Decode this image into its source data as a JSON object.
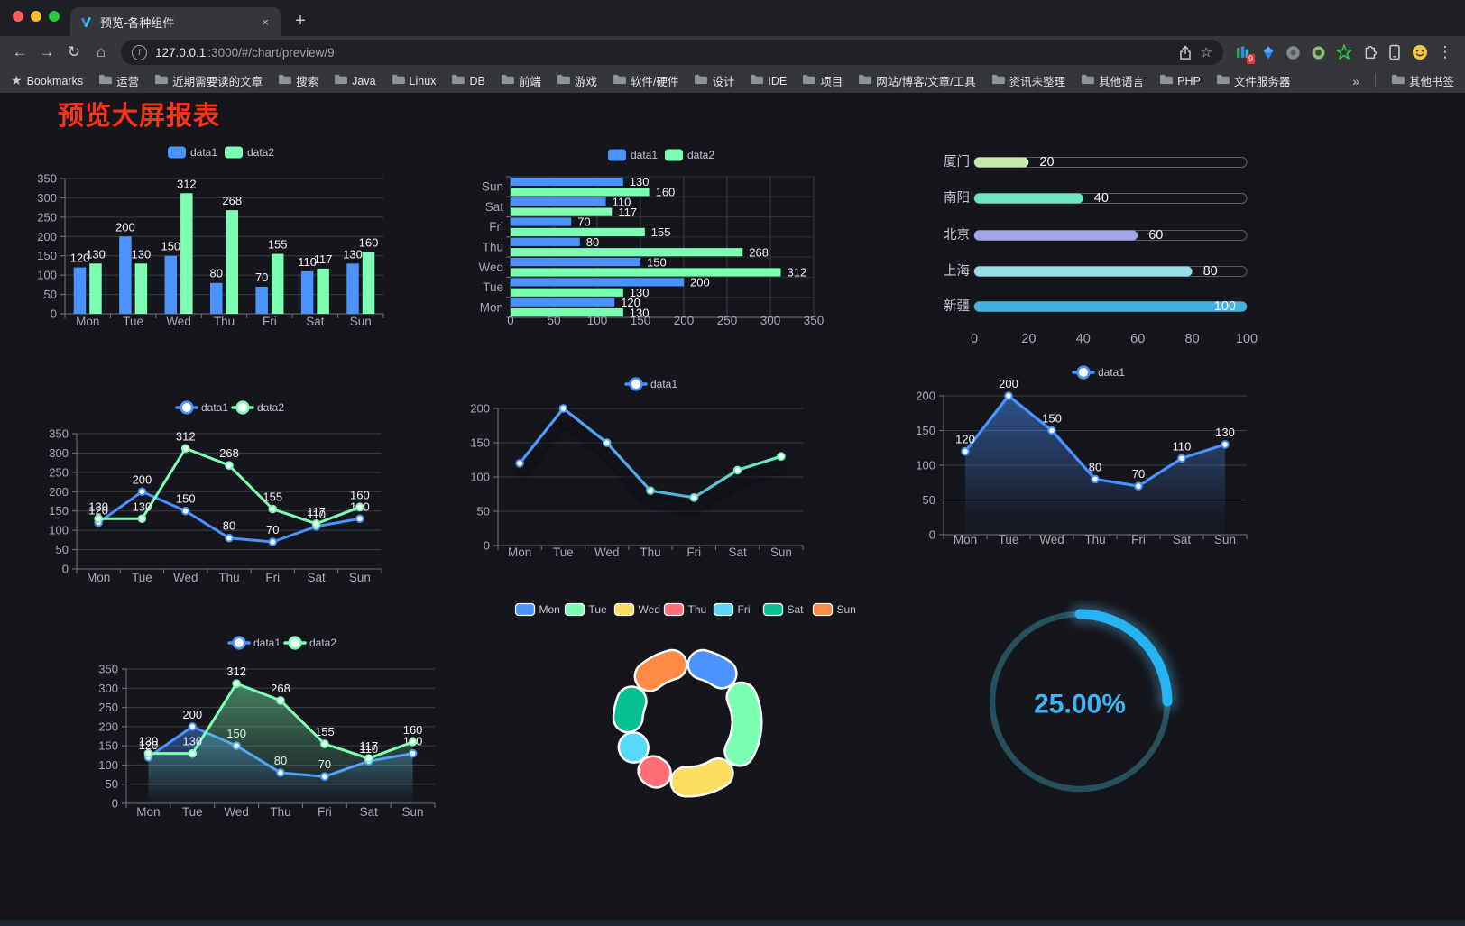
{
  "browser": {
    "tab": {
      "title": "预览-各种组件",
      "close_label": "×",
      "new_tab_label": "+"
    },
    "url": {
      "host": "127.0.0.1",
      "rest": ":3000/#/chart/preview/9"
    },
    "icons": {
      "back": "←",
      "forward": "→",
      "reload": "↻",
      "home": "⌂",
      "info": "i",
      "star": "☆",
      "bookmarks_star": "★",
      "menu": "⋮"
    },
    "extension_badge": "9",
    "bookmarks_bar": {
      "label": "Bookmarks",
      "folders": [
        "运营",
        "近期需要读的文章",
        "搜索",
        "Java",
        "Linux",
        "DB",
        "前端",
        "游戏",
        "软件/硬件",
        "设计",
        "IDE",
        "项目",
        "网站/博客/文章/工具",
        "资讯未整理",
        "其他语言",
        "PHP",
        "文件服务器"
      ],
      "overflow": "»",
      "other": "其他书签"
    }
  },
  "page": {
    "title": "预览大屏报表",
    "title_color": "#f7331c"
  },
  "chart_data": [
    {
      "id": "bar-grouped",
      "type": "bar",
      "categories": [
        "Mon",
        "Tue",
        "Wed",
        "Thu",
        "Fri",
        "Sat",
        "Sun"
      ],
      "series": [
        {
          "name": "data1",
          "color": "#4992ff",
          "values": [
            120,
            200,
            150,
            80,
            70,
            110,
            130
          ]
        },
        {
          "name": "data2",
          "color": "#7cffb2",
          "values": [
            130,
            130,
            312,
            268,
            155,
            117,
            160
          ]
        }
      ],
      "ylim": [
        0,
        350
      ],
      "ystep": 50,
      "legend_position": "top",
      "grid": true
    },
    {
      "id": "bar-horizontal",
      "type": "bar-horizontal",
      "categories_top_to_bottom": [
        "Sun",
        "Sat",
        "Fri",
        "Thu",
        "Wed",
        "Tue",
        "Mon"
      ],
      "series": [
        {
          "name": "data1",
          "color": "#4992ff",
          "values": [
            130,
            110,
            70,
            80,
            150,
            200,
            120
          ]
        },
        {
          "name": "data2",
          "color": "#7cffb2",
          "values": [
            160,
            117,
            155,
            268,
            312,
            130,
            130
          ]
        }
      ],
      "xlim": [
        0,
        350
      ],
      "xstep": 50,
      "legend_position": "top"
    },
    {
      "id": "progress",
      "type": "progress-bars",
      "xticks": [
        0,
        20,
        40,
        60,
        80,
        100
      ],
      "max": 100,
      "items": [
        {
          "label": "厦门",
          "value": 20,
          "color": "#c4ebad"
        },
        {
          "label": "南阳",
          "value": 40,
          "color": "#6be6c1"
        },
        {
          "label": "北京",
          "value": 60,
          "color": "#a0a7e6"
        },
        {
          "label": "上海",
          "value": 80,
          "color": "#96dee8"
        },
        {
          "label": "新疆",
          "value": 100,
          "color": "#3fb1e3"
        }
      ]
    },
    {
      "id": "line-two",
      "type": "line",
      "area": false,
      "show_labels": true,
      "categories": [
        "Mon",
        "Tue",
        "Wed",
        "Thu",
        "Fri",
        "Sat",
        "Sun"
      ],
      "series": [
        {
          "name": "data1",
          "color": "#4992ff",
          "values": [
            120,
            200,
            150,
            80,
            70,
            110,
            130
          ]
        },
        {
          "name": "data2",
          "color": "#7cffb2",
          "values": [
            130,
            130,
            312,
            268,
            155,
            117,
            160
          ]
        }
      ],
      "ylim": [
        0,
        350
      ],
      "ystep": 50
    },
    {
      "id": "line-gradient",
      "type": "line-gradient",
      "show_labels": false,
      "categories": [
        "Mon",
        "Tue",
        "Wed",
        "Thu",
        "Fri",
        "Sat",
        "Sun"
      ],
      "series": [
        {
          "name": "data1",
          "color": "#4992ff",
          "color_end": "#7cffb2",
          "values": [
            120,
            200,
            150,
            80,
            70,
            110,
            130
          ]
        }
      ],
      "ylim": [
        0,
        200
      ],
      "ystep": 50
    },
    {
      "id": "line-area",
      "type": "line-area",
      "show_labels": true,
      "categories": [
        "Mon",
        "Tue",
        "Wed",
        "Thu",
        "Fri",
        "Sat",
        "Sun"
      ],
      "series": [
        {
          "name": "data1",
          "color": "#4992ff",
          "values": [
            120,
            200,
            150,
            80,
            70,
            110,
            130
          ]
        }
      ],
      "ylim": [
        0,
        200
      ],
      "ystep": 50
    },
    {
      "id": "line-two-area",
      "type": "line",
      "area": true,
      "show_labels": true,
      "categories": [
        "Mon",
        "Tue",
        "Wed",
        "Thu",
        "Fri",
        "Sat",
        "Sun"
      ],
      "series": [
        {
          "name": "data1",
          "color": "#4992ff",
          "values": [
            120,
            200,
            150,
            80,
            70,
            110,
            130
          ]
        },
        {
          "name": "data2",
          "color": "#7cffb2",
          "values": [
            130,
            130,
            312,
            268,
            155,
            117,
            160
          ]
        }
      ],
      "ylim": [
        0,
        350
      ],
      "ystep": 50
    },
    {
      "id": "donut",
      "type": "pie",
      "legend_position": "top",
      "items": [
        {
          "label": "Mon",
          "value": 120,
          "color": "#4992ff"
        },
        {
          "label": "Tue",
          "value": 200,
          "color": "#7cffb2"
        },
        {
          "label": "Wed",
          "value": 150,
          "color": "#fddd60"
        },
        {
          "label": "Thu",
          "value": 80,
          "color": "#ff6e76"
        },
        {
          "label": "Fri",
          "value": 70,
          "color": "#58d9f9"
        },
        {
          "label": "Sat",
          "value": 110,
          "color": "#05c091"
        },
        {
          "label": "Sun",
          "value": 130,
          "color": "#ff8a45"
        }
      ]
    },
    {
      "id": "gauge",
      "type": "gauge",
      "percent": 25,
      "label": "25.00%",
      "arc_color": "#26b3f2",
      "track_color": "#27505e",
      "text_color": "#41b2f3"
    }
  ]
}
